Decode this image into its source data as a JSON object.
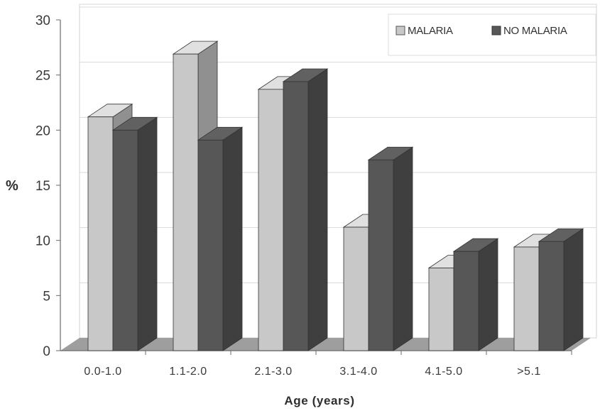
{
  "chart_data": {
    "type": "bar",
    "style": "3d-clustered-column",
    "categories": [
      "0.0-1.0",
      "1.1-2.0",
      "2.1-3.0",
      "3.1-4.0",
      "4.1-5.0",
      ">5.1"
    ],
    "series": [
      {
        "name": "MALARIA",
        "values": [
          21.2,
          26.9,
          23.7,
          11.2,
          7.5,
          9.4
        ],
        "color": "#c8c8c8"
      },
      {
        "name": "NO MALARIA",
        "values": [
          20.0,
          19.1,
          24.4,
          17.3,
          9.0,
          9.9
        ],
        "color": "#575757"
      }
    ],
    "xlabel": "Age (years)",
    "ylabel": "%",
    "ylim": [
      0,
      30
    ],
    "yticks": [
      0,
      5,
      10,
      15,
      20,
      25,
      30
    ],
    "grid": true,
    "legend": "top-right"
  }
}
